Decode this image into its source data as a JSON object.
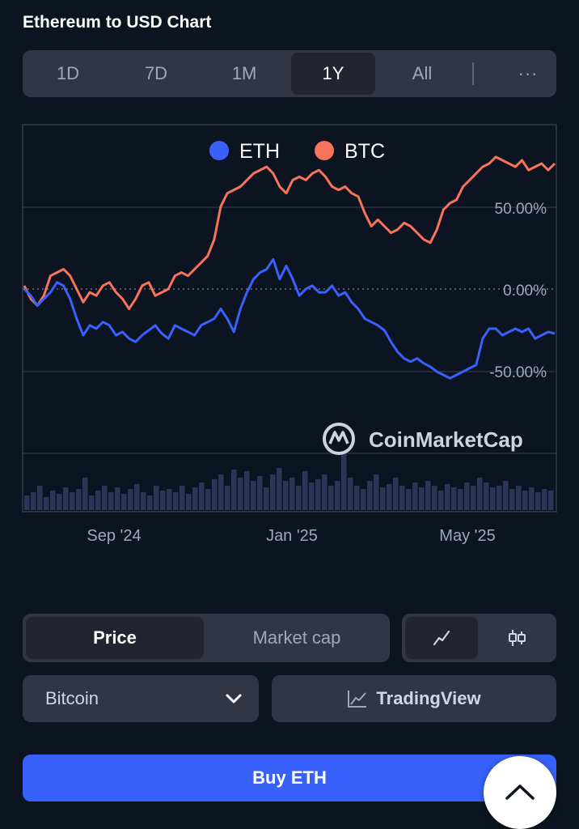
{
  "header": {
    "title": "Ethereum to USD Chart"
  },
  "ranges": {
    "items": [
      "1D",
      "7D",
      "1M",
      "1Y",
      "All"
    ],
    "active": "1Y",
    "more": "···"
  },
  "chart_data": {
    "type": "line",
    "series": [
      {
        "name": "ETH",
        "color": "#3861fb",
        "values": [
          0,
          -4,
          -10,
          -6,
          -2,
          4,
          2,
          -6,
          -18,
          -28,
          -22,
          -24,
          -20,
          -22,
          -28,
          -26,
          -30,
          -32,
          -28,
          -25,
          -22,
          -27,
          -30,
          -22,
          -24,
          -26,
          -28,
          -22,
          -20,
          -18,
          -12,
          -18,
          -26,
          -12,
          -2,
          6,
          10,
          12,
          18,
          6,
          14,
          6,
          -4,
          0,
          2,
          -2,
          -2,
          2,
          -4,
          -2,
          -8,
          -12,
          -18,
          -20,
          -22,
          -25,
          -32,
          -38,
          -42,
          -44,
          -42,
          -45,
          -47,
          -50,
          -52,
          -54,
          -52,
          -50,
          -48,
          -46,
          -30,
          -24,
          -24,
          -28,
          -26,
          -24,
          -26,
          -24,
          -30,
          -28,
          -26,
          -27
        ]
      },
      {
        "name": "BTC",
        "color": "#f7735b",
        "values": [
          2,
          -6,
          -10,
          -4,
          8,
          10,
          12,
          8,
          0,
          -8,
          -2,
          -4,
          2,
          4,
          -2,
          -6,
          -12,
          -6,
          2,
          4,
          -4,
          -2,
          0,
          8,
          10,
          8,
          12,
          16,
          20,
          30,
          50,
          58,
          60,
          62,
          66,
          70,
          72,
          74,
          70,
          62,
          58,
          66,
          68,
          66,
          70,
          72,
          68,
          62,
          60,
          62,
          58,
          56,
          46,
          38,
          42,
          38,
          34,
          36,
          40,
          38,
          34,
          30,
          28,
          36,
          48,
          52,
          54,
          62,
          66,
          70,
          74,
          76,
          80,
          78,
          76,
          74,
          78,
          72,
          74,
          76,
          72,
          76
        ]
      }
    ],
    "y_tick_labels": [
      "50.00%",
      "0.00%",
      "-50.00%"
    ],
    "y_tick_values": [
      50,
      0,
      -50
    ],
    "x_tick_labels": [
      "Sep '24",
      "Jan '25",
      "May '25"
    ],
    "x_tick_positions": [
      0.17,
      0.5,
      0.83
    ],
    "watermark": "CoinMarketCap",
    "volume": [
      18,
      22,
      30,
      16,
      24,
      20,
      28,
      22,
      26,
      40,
      18,
      24,
      30,
      22,
      28,
      20,
      26,
      32,
      22,
      18,
      30,
      24,
      26,
      22,
      30,
      20,
      28,
      34,
      26,
      38,
      44,
      30,
      50,
      40,
      48,
      36,
      42,
      28,
      44,
      52,
      36,
      40,
      30,
      48,
      34,
      38,
      44,
      30,
      36,
      70,
      40,
      30,
      26,
      36,
      44,
      28,
      32,
      40,
      30,
      26,
      34,
      28,
      36,
      30,
      24,
      32,
      28,
      26,
      34,
      30,
      40,
      34,
      28,
      30,
      36,
      26,
      30,
      24,
      28,
      22,
      26,
      24
    ]
  },
  "view_toggle": {
    "price": "Price",
    "market_cap": "Market cap",
    "active": "Price"
  },
  "chart_type": {
    "line_icon": "line-chart-icon",
    "candle_icon": "candlestick-icon"
  },
  "compare": {
    "selected": "Bitcoin"
  },
  "tradingview": {
    "label": "TradingView"
  },
  "buy": {
    "label": "Buy ETH"
  }
}
